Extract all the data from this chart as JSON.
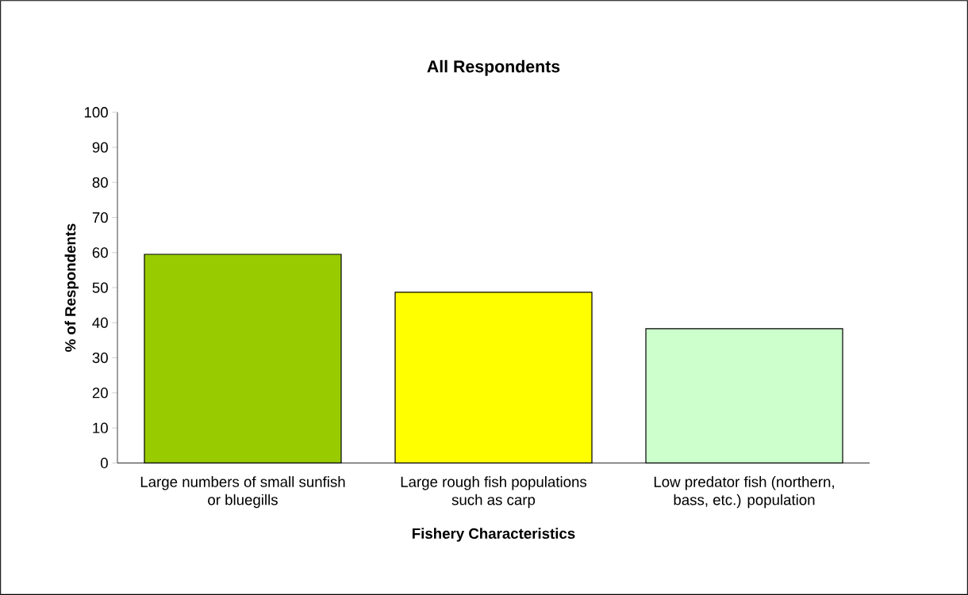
{
  "chart_data": {
    "type": "bar",
    "title": "All Respondents",
    "xlabel": "Fishery Characteristics",
    "ylabel": "% of Respondents",
    "categories": [
      "Large numbers of small sunfish or bluegills",
      "Large rough fish populations such as carp",
      "Low predator fish (northern, bass, etc.) population"
    ],
    "values": [
      59.5,
      48.7,
      38.3
    ],
    "colors": [
      "#99cc00",
      "#ffff00",
      "#ccffcc"
    ],
    "ylim": [
      0,
      100
    ],
    "yticks": [
      0,
      10,
      20,
      30,
      40,
      50,
      60,
      70,
      80,
      90,
      100
    ],
    "grid": false
  }
}
